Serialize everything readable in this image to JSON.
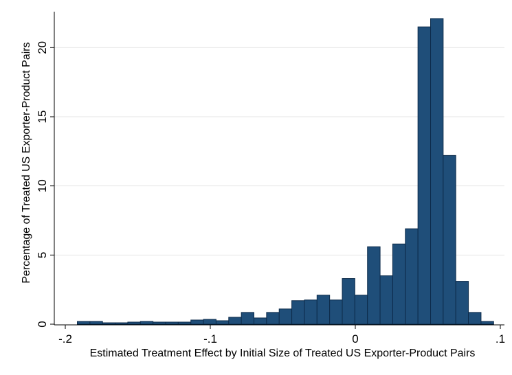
{
  "chart_data": {
    "type": "bar",
    "title": "",
    "xlabel": "Estimated Treatment Effect by Initial Size of Treated US Exporter-Product Pairs",
    "ylabel": "Percentage of Treated US Exporter-Product Pairs",
    "xlim": [
      -0.2,
      0.1
    ],
    "ylim": [
      0,
      22.5
    ],
    "xticks": [
      -0.2,
      -0.1,
      0,
      0.1
    ],
    "xtick_labels": [
      "-.2",
      "-.1",
      "0",
      ".1"
    ],
    "yticks": [
      0,
      5,
      10,
      15,
      20
    ],
    "ytick_labels": [
      "0",
      "5",
      "10",
      "15",
      "20"
    ],
    "grid": "horizontal",
    "bin_width": 0.0087,
    "bin_start": -0.1917,
    "values": [
      0.2,
      0.2,
      0.1,
      0.1,
      0.15,
      0.2,
      0.15,
      0.15,
      0.15,
      0.3,
      0.35,
      0.25,
      0.5,
      0.85,
      0.45,
      0.85,
      1.1,
      1.7,
      1.75,
      2.1,
      1.75,
      3.3,
      2.1,
      5.6,
      3.5,
      5.8,
      6.9,
      21.5,
      22.1,
      12.2,
      3.1,
      0.85,
      0.2
    ],
    "colors": {
      "bar_fill": "#1f4e79",
      "bar_stroke": "#0d2b4a",
      "grid": "#e6e6e6",
      "axis": "#000000"
    }
  }
}
